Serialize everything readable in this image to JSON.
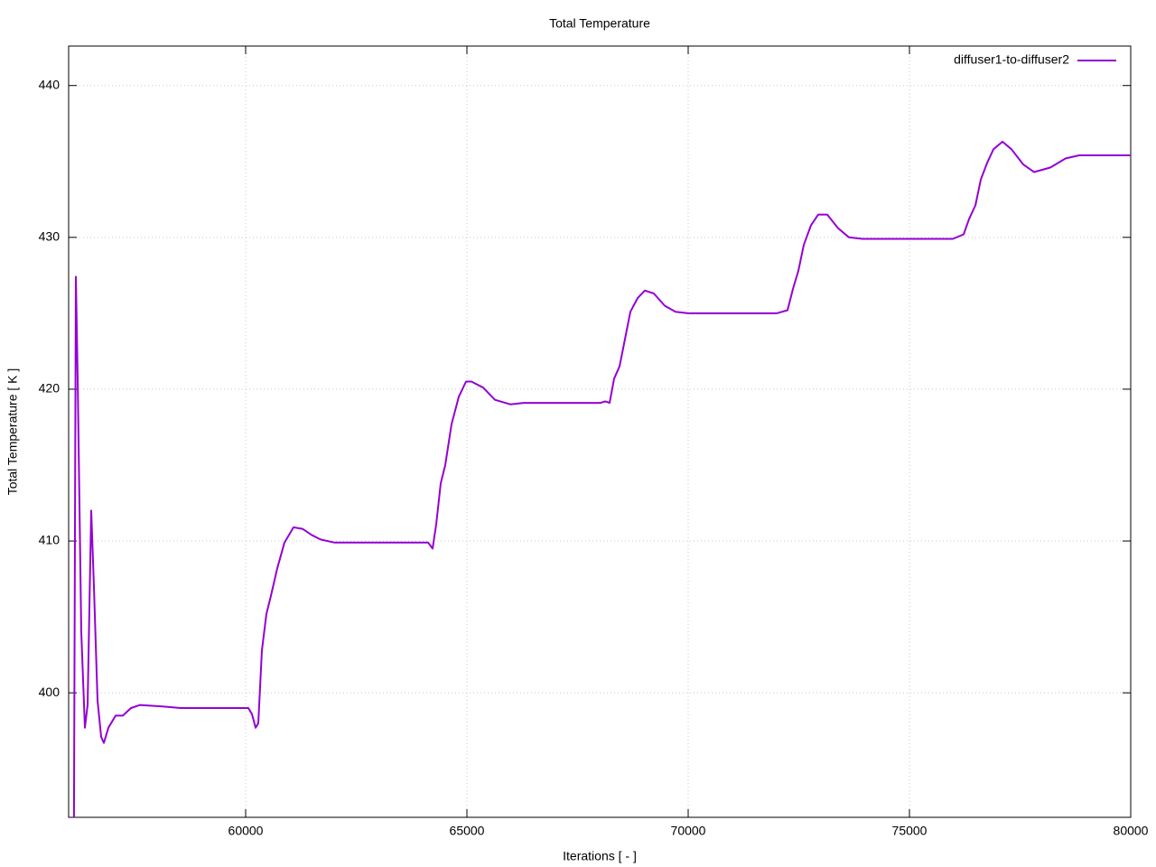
{
  "chart_data": {
    "type": "line",
    "title": "Total Temperature",
    "x_label": "Iterations [ - ]",
    "y_label": "Total Temperature [ K ]",
    "xlim": [
      56000,
      80000
    ],
    "ylim": [
      391.8,
      442.6
    ],
    "xticks": [
      60000,
      65000,
      70000,
      75000,
      80000
    ],
    "yticks": [
      400,
      410,
      420,
      430,
      440
    ],
    "grid": true,
    "legend": "top-right",
    "series": [
      {
        "name": "diffuser1-to-diffuser2",
        "color": "#9400d3",
        "x": [
          56120,
          56163,
          56204,
          56286,
          56367,
          56429,
          56510,
          56571,
          56653,
          56735,
          56796,
          56898,
          57061,
          57224,
          57408,
          57612,
          58122,
          58531,
          60061,
          60143,
          60224,
          60286,
          60367,
          60469,
          60571,
          60714,
          60878,
          61082,
          61286,
          61490,
          61694,
          62000,
          63939,
          64122,
          64224,
          64306,
          64408,
          64510,
          64653,
          64816,
          64980,
          65102,
          65367,
          65633,
          65980,
          66286,
          68020,
          68122,
          68224,
          68327,
          68449,
          68571,
          68694,
          68857,
          69020,
          69224,
          69469,
          69714,
          70000,
          72000,
          72245,
          72367,
          72490,
          72612,
          72776,
          72939,
          73143,
          73388,
          73633,
          73939,
          74143,
          75980,
          76224,
          76347,
          76490,
          76612,
          76755,
          76898,
          77102,
          77306,
          77571,
          77816,
          78184,
          78531,
          78837,
          80000
        ],
        "values": [
          391.8,
          427.4,
          420.7,
          404,
          397.7,
          399.2,
          412.0,
          407,
          399.5,
          397.1,
          396.7,
          397.7,
          398.5,
          398.5,
          399.0,
          399.2,
          399.1,
          399.0,
          399.0,
          398.6,
          397.7,
          398,
          402.8,
          405.2,
          406.4,
          408.2,
          409.9,
          410.9,
          410.8,
          410.4,
          410.1,
          409.9,
          409.9,
          409.9,
          409.5,
          411.1,
          413.8,
          415.0,
          417.7,
          419.5,
          420.5,
          420.5,
          420.1,
          419.3,
          419.0,
          419.1,
          419.1,
          419.2,
          419.1,
          420.7,
          421.5,
          423.3,
          425.1,
          426.0,
          426.5,
          426.3,
          425.5,
          425.1,
          425.0,
          425.0,
          425.2,
          426.6,
          427.8,
          429.5,
          430.8,
          431.5,
          431.5,
          430.6,
          430.0,
          429.9,
          429.9,
          429.9,
          430.2,
          431.2,
          432.1,
          433.8,
          434.9,
          435.8,
          436.3,
          435.8,
          434.8,
          434.3,
          434.6,
          435.2,
          435.4,
          435.4
        ]
      }
    ]
  }
}
